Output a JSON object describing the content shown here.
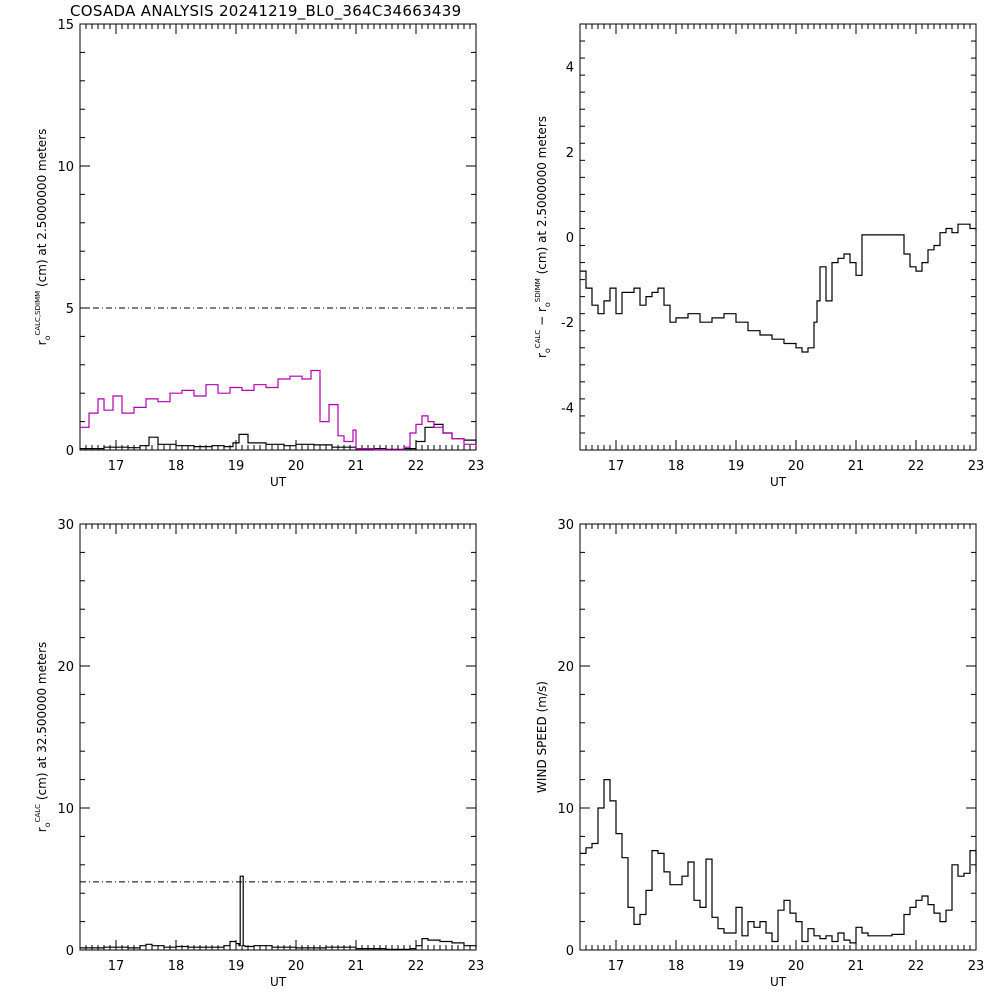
{
  "page_title": "COSADA ANALYSIS 20241219_BL0_364C34663439",
  "colors": {
    "primary": "#000000",
    "secondary": "#b000b0"
  },
  "chart_data": [
    {
      "id": "top-left",
      "type": "line",
      "xlabel": "UT",
      "ylabel": {
        "base": "r",
        "sub": "o",
        "sup": "CALC,SDIMM",
        "rest": " (cm)  at  2.5000000 meters"
      },
      "xlim": [
        16.4,
        23.0
      ],
      "ylim": [
        0,
        15
      ],
      "xticks": [
        17,
        18,
        19,
        20,
        21,
        22,
        23
      ],
      "yticks": [
        0,
        5,
        10,
        15
      ],
      "reference_line": 5.0,
      "series": [
        {
          "color": "#000000",
          "x": [
            16.4,
            16.8,
            17.2,
            17.4,
            17.55,
            17.7,
            18.0,
            18.3,
            18.6,
            18.8,
            18.95,
            19.05,
            19.2,
            19.5,
            19.8,
            20.0,
            20.3,
            20.6,
            21.0,
            21.5,
            21.8,
            22.0,
            22.15,
            22.3,
            22.45,
            22.6,
            22.8,
            23.0
          ],
          "y": [
            0.05,
            0.1,
            0.08,
            0.15,
            0.45,
            0.2,
            0.15,
            0.12,
            0.15,
            0.12,
            0.25,
            0.55,
            0.25,
            0.2,
            0.15,
            0.2,
            0.18,
            0.1,
            0.05,
            0.02,
            0.05,
            0.3,
            0.8,
            0.9,
            0.6,
            0.4,
            0.35,
            0.05
          ]
        },
        {
          "color": "#b000b0",
          "x": [
            16.4,
            16.55,
            16.7,
            16.8,
            16.95,
            17.1,
            17.3,
            17.5,
            17.7,
            17.9,
            18.1,
            18.3,
            18.5,
            18.7,
            18.9,
            19.1,
            19.3,
            19.5,
            19.7,
            19.9,
            20.1,
            20.25,
            20.4,
            20.55,
            20.7,
            20.8,
            20.95,
            21.0,
            21.3,
            21.6,
            21.8,
            21.9,
            22.0,
            22.1,
            22.2,
            22.3,
            22.45,
            22.6,
            22.8,
            23.0
          ],
          "y": [
            0.8,
            1.3,
            1.8,
            1.4,
            1.9,
            1.3,
            1.5,
            1.8,
            1.7,
            2.0,
            2.1,
            1.9,
            2.3,
            2.0,
            2.2,
            2.1,
            2.3,
            2.2,
            2.5,
            2.6,
            2.5,
            2.8,
            1.0,
            1.6,
            0.5,
            0.3,
            0.7,
            0.05,
            0.0,
            0.0,
            0.1,
            0.6,
            0.9,
            1.2,
            1.0,
            0.8,
            0.6,
            0.4,
            0.2,
            0.1
          ]
        }
      ]
    },
    {
      "id": "top-right",
      "type": "line",
      "xlabel": "UT",
      "ylabel": {
        "base": "r",
        "sub": "o",
        "sup": "CALC",
        "mid": "  − r",
        "sub2": "o",
        "sup2": "SDIMM",
        "rest": " (cm)  at  2.5000000 meters"
      },
      "xlim": [
        16.4,
        23.0
      ],
      "ylim": [
        -5,
        5
      ],
      "xticks": [
        17,
        18,
        19,
        20,
        21,
        22,
        23
      ],
      "yticks": [
        -4,
        -2,
        0,
        2,
        4
      ],
      "series": [
        {
          "color": "#000000",
          "x": [
            16.4,
            16.5,
            16.6,
            16.7,
            16.8,
            16.9,
            17.0,
            17.1,
            17.2,
            17.3,
            17.4,
            17.5,
            17.6,
            17.7,
            17.8,
            17.9,
            18.0,
            18.2,
            18.4,
            18.6,
            18.8,
            19.0,
            19.2,
            19.4,
            19.6,
            19.8,
            19.9,
            20.0,
            20.1,
            20.2,
            20.3,
            20.35,
            20.4,
            20.5,
            20.55,
            20.6,
            20.7,
            20.8,
            20.9,
            21.0,
            21.1,
            21.2,
            21.5,
            21.8,
            21.9,
            22.0,
            22.1,
            22.2,
            22.3,
            22.4,
            22.5,
            22.6,
            22.7,
            22.8,
            22.9,
            23.0
          ],
          "y": [
            -0.8,
            -1.2,
            -1.6,
            -1.8,
            -1.5,
            -1.2,
            -1.8,
            -1.3,
            -1.3,
            -1.2,
            -1.6,
            -1.4,
            -1.3,
            -1.2,
            -1.6,
            -2.0,
            -1.9,
            -1.8,
            -2.0,
            -1.9,
            -1.8,
            -2.0,
            -2.2,
            -2.3,
            -2.4,
            -2.5,
            -2.5,
            -2.6,
            -2.7,
            -2.6,
            -2.0,
            -1.5,
            -0.7,
            -1.5,
            -1.5,
            -0.6,
            -0.5,
            -0.4,
            -0.6,
            -0.9,
            0.05,
            0.05,
            0.05,
            -0.4,
            -0.7,
            -0.8,
            -0.6,
            -0.3,
            -0.2,
            0.1,
            0.2,
            0.1,
            0.3,
            0.3,
            0.2,
            0.15
          ]
        }
      ]
    },
    {
      "id": "bottom-left",
      "type": "line",
      "xlabel": "UT",
      "ylabel": {
        "base": "r",
        "sub": "o",
        "sup": "CALC",
        "rest": " (cm)  at  32.500000 meters"
      },
      "xlim": [
        16.4,
        23.0
      ],
      "ylim": [
        0,
        30
      ],
      "xticks": [
        17,
        18,
        19,
        20,
        21,
        22,
        23
      ],
      "yticks": [
        0,
        10,
        20,
        30
      ],
      "reference_line": 4.8,
      "series": [
        {
          "color": "#000000",
          "x": [
            16.4,
            16.8,
            17.2,
            17.4,
            17.5,
            17.6,
            17.8,
            18.0,
            18.2,
            18.5,
            18.8,
            18.9,
            19.0,
            19.05,
            19.07,
            19.12,
            19.15,
            19.3,
            19.6,
            20.0,
            20.5,
            21.0,
            21.5,
            21.9,
            22.0,
            22.1,
            22.2,
            22.4,
            22.6,
            22.8,
            23.0
          ],
          "y": [
            0.15,
            0.2,
            0.15,
            0.3,
            0.4,
            0.3,
            0.2,
            0.25,
            0.2,
            0.2,
            0.3,
            0.6,
            0.45,
            0.3,
            5.2,
            0.3,
            0.25,
            0.3,
            0.2,
            0.15,
            0.2,
            0.1,
            0.05,
            0.1,
            0.3,
            0.8,
            0.7,
            0.6,
            0.5,
            0.3,
            0.1
          ]
        }
      ]
    },
    {
      "id": "bottom-right",
      "type": "line",
      "xlabel": "UT",
      "ylabel": {
        "base": "WIND SPEED (m/s)"
      },
      "xlim": [
        16.4,
        23.0
      ],
      "ylim": [
        0,
        30
      ],
      "xticks": [
        17,
        18,
        19,
        20,
        21,
        22,
        23
      ],
      "yticks": [
        0,
        10,
        20,
        30
      ],
      "series": [
        {
          "color": "#000000",
          "x": [
            16.4,
            16.5,
            16.6,
            16.7,
            16.8,
            16.9,
            17.0,
            17.1,
            17.2,
            17.3,
            17.4,
            17.5,
            17.6,
            17.7,
            17.8,
            17.9,
            18.0,
            18.1,
            18.2,
            18.3,
            18.4,
            18.5,
            18.6,
            18.7,
            18.8,
            18.9,
            19.0,
            19.1,
            19.2,
            19.3,
            19.4,
            19.5,
            19.6,
            19.7,
            19.8,
            19.9,
            20.0,
            20.1,
            20.2,
            20.3,
            20.4,
            20.5,
            20.6,
            20.7,
            20.8,
            20.9,
            21.0,
            21.1,
            21.2,
            21.4,
            21.6,
            21.8,
            21.9,
            22.0,
            22.1,
            22.2,
            22.3,
            22.4,
            22.5,
            22.6,
            22.7,
            22.8,
            22.9,
            23.0
          ],
          "y": [
            6.8,
            7.2,
            7.5,
            10.0,
            12.0,
            10.5,
            8.2,
            6.5,
            3.0,
            1.8,
            2.5,
            4.2,
            7.0,
            6.8,
            5.5,
            4.6,
            4.6,
            5.2,
            6.2,
            3.5,
            3.0,
            6.4,
            2.3,
            1.5,
            1.2,
            1.2,
            3.0,
            1.0,
            2.0,
            1.6,
            2.0,
            1.2,
            0.6,
            2.8,
            3.5,
            2.6,
            2.0,
            0.6,
            1.5,
            1.0,
            0.8,
            1.0,
            0.6,
            1.2,
            0.7,
            0.5,
            1.6,
            1.2,
            1.0,
            1.0,
            1.1,
            2.5,
            3.0,
            3.5,
            3.8,
            3.2,
            2.6,
            2.0,
            2.8,
            6.0,
            5.2,
            5.4,
            7.0,
            5.5
          ]
        }
      ]
    }
  ]
}
